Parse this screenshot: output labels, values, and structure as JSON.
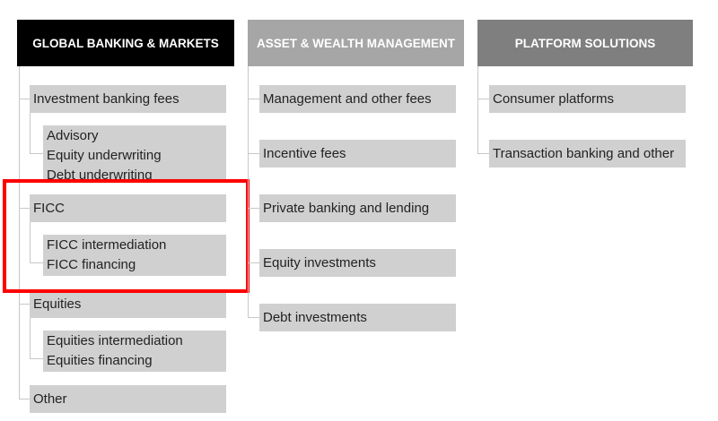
{
  "columns": [
    {
      "title": "GLOBAL BANKING & MARKETS",
      "color": "#000000",
      "items": [
        {
          "label": "Investment banking fees",
          "children": [
            "Advisory",
            "Equity underwriting",
            "Debt underwriting"
          ]
        },
        {
          "label": "FICC",
          "children": [
            "FICC intermediation",
            "FICC financing"
          ]
        },
        {
          "label": "Equities",
          "children": [
            "Equities intermediation",
            "Equities financing"
          ]
        },
        {
          "label": "Other",
          "children": []
        }
      ]
    },
    {
      "title": "ASSET & WEALTH MANAGEMENT",
      "color": "#a6a6a6",
      "items": [
        {
          "label": "Management and other fees"
        },
        {
          "label": "Incentive fees"
        },
        {
          "label": "Private banking and lending"
        },
        {
          "label": "Equity investments"
        },
        {
          "label": "Debt investments"
        }
      ]
    },
    {
      "title": "PLATFORM SOLUTIONS",
      "color": "#7f7f7f",
      "items": [
        {
          "label": "Consumer platforms"
        },
        {
          "label": "Transaction banking and other"
        }
      ]
    }
  ],
  "highlight": {
    "target": "FICC",
    "color": "#ff0000"
  }
}
